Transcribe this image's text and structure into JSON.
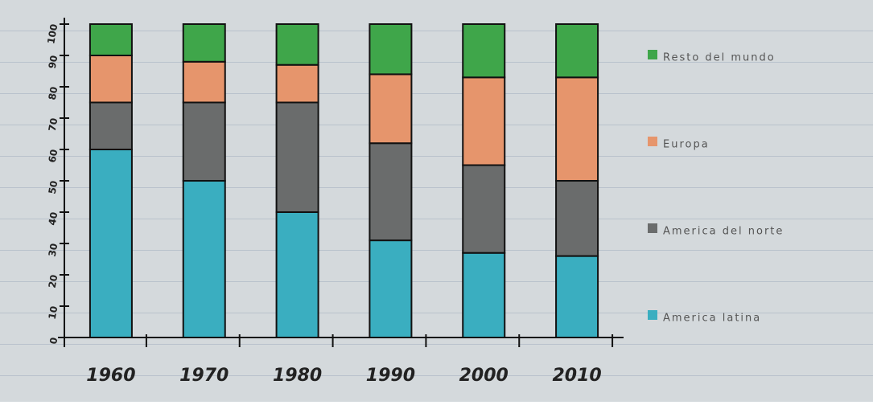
{
  "chart_data": {
    "type": "stacked_bar",
    "categories": [
      "1960",
      "1970",
      "1980",
      "1990",
      "2000",
      "2010"
    ],
    "series": [
      {
        "name": "America latina",
        "color": "#3aaec0",
        "values": [
          60,
          50,
          40,
          31,
          27,
          26
        ]
      },
      {
        "name": "America del norte",
        "color": "#6a6c6c",
        "values": [
          15,
          25,
          35,
          31,
          28,
          24
        ]
      },
      {
        "name": "Europa",
        "color": "#e6956c",
        "values": [
          15,
          13,
          12,
          22,
          28,
          33
        ]
      },
      {
        "name": "Resto del mundo",
        "color": "#3fa64a",
        "values": [
          10,
          12,
          13,
          16,
          17,
          17
        ]
      }
    ],
    "ylim": [
      0,
      100
    ],
    "yticks": [
      0,
      10,
      20,
      30,
      40,
      50,
      60,
      70,
      80,
      90,
      100
    ],
    "legend": "right"
  }
}
